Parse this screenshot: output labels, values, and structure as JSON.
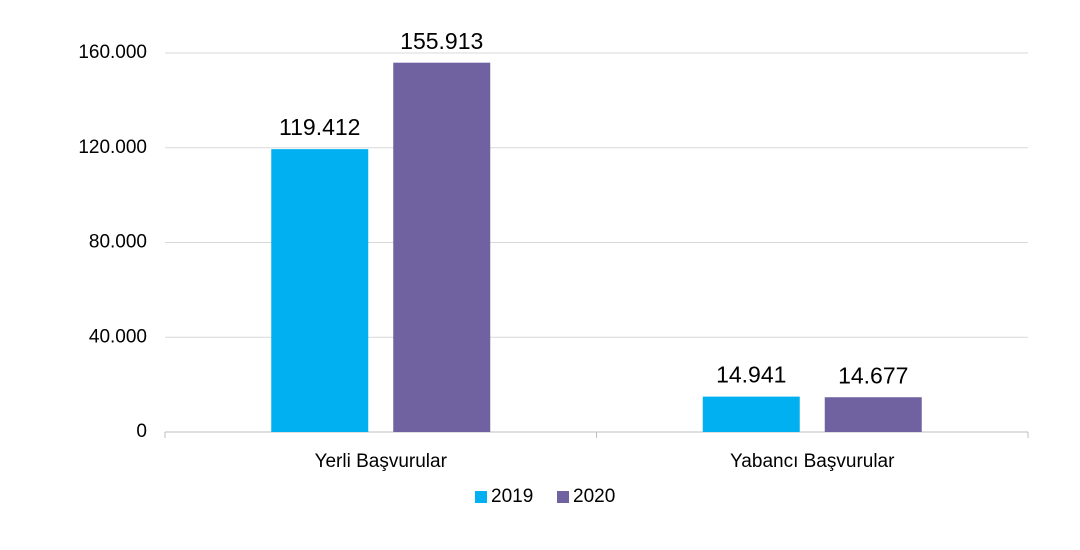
{
  "chart_data": {
    "type": "bar",
    "categories": [
      "Yerli Başvurular",
      "Yabancı Başvurular"
    ],
    "series": [
      {
        "name": "2019",
        "color": "#00b0f0",
        "values": [
          119412,
          14941
        ],
        "value_labels": [
          "119.412",
          "14.941"
        ]
      },
      {
        "name": "2020",
        "color": "#7062a1",
        "values": [
          155913,
          14677
        ],
        "value_labels": [
          "155.913",
          "14.677"
        ]
      }
    ],
    "ylim": [
      0,
      160000
    ],
    "yticks": [
      0,
      {
        "value": 40000,
        "label": "40.000"
      },
      {
        "value": 80000,
        "label": "80.000"
      },
      {
        "value": 120000,
        "label": "120.000"
      },
      {
        "value": 160000,
        "label": "160.000"
      }
    ],
    "grid": true,
    "legend": "bottom"
  }
}
